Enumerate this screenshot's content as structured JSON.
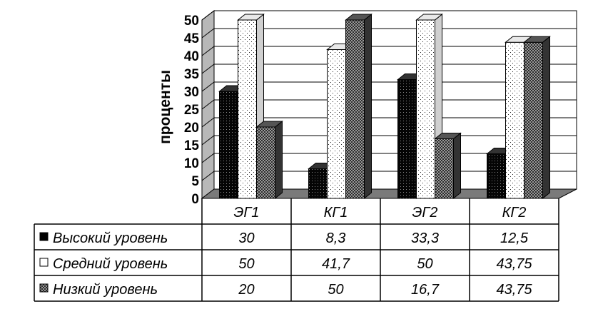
{
  "chart_data": {
    "type": "bar",
    "ylabel": "проценты",
    "ylim": [
      0,
      50
    ],
    "yticks": [
      "0",
      "5",
      "10",
      "15",
      "20",
      "25",
      "30",
      "35",
      "40",
      "45",
      "50"
    ],
    "categories": [
      "ЭГ1",
      "КГ1",
      "ЭГ2",
      "КГ2"
    ],
    "grid": true,
    "legend": "table-left",
    "series": [
      {
        "name": "Высокий уровень",
        "values": [
          30,
          8.3,
          33.3,
          12.5
        ],
        "labels": [
          "30",
          "8,3",
          "33,3",
          "12,5"
        ],
        "color": "#000000"
      },
      {
        "name": "Средний уровень",
        "values": [
          50,
          41.7,
          50,
          43.75
        ],
        "labels": [
          "50",
          "41,7",
          "50",
          "43,75"
        ],
        "color": "#ffffff"
      },
      {
        "name": "Низкий уровень",
        "values": [
          20,
          50,
          16.7,
          43.75
        ],
        "labels": [
          "20",
          "50",
          "16,7",
          "43,75"
        ],
        "color": "#444444"
      }
    ]
  }
}
